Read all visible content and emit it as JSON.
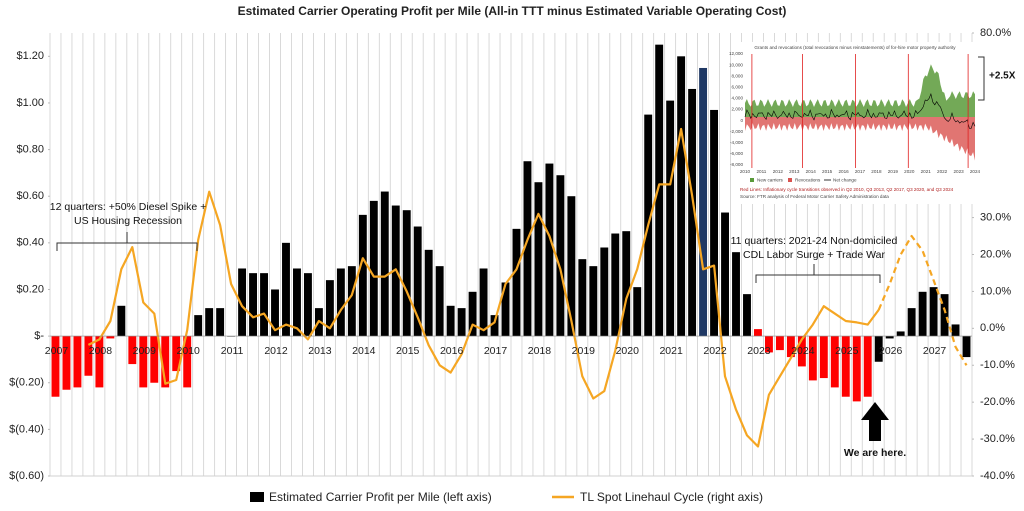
{
  "chart_data": {
    "type": "bar_line",
    "title": "Estimated Carrier Operating Profit per Mile (All-in TTT minus Estimated Variable Operating Cost)",
    "categories": [
      "2007",
      null,
      null,
      null,
      "2008",
      null,
      null,
      null,
      "2009",
      null,
      null,
      null,
      "2010",
      null,
      null,
      null,
      "2011",
      null,
      null,
      null,
      "2012",
      null,
      null,
      null,
      "2013",
      null,
      null,
      null,
      "2014",
      null,
      null,
      null,
      "2015",
      null,
      null,
      null,
      "2016",
      null,
      null,
      null,
      "2017",
      null,
      null,
      null,
      "2018",
      null,
      null,
      null,
      "2019",
      null,
      null,
      null,
      "2020",
      null,
      null,
      null,
      "2021",
      null,
      null,
      null,
      "2022",
      null,
      null,
      null,
      "2023",
      null,
      null,
      null,
      "2024",
      null,
      null,
      null,
      "2025",
      null,
      null,
      null,
      "2026",
      null,
      null,
      null,
      "2027",
      null,
      null,
      null
    ],
    "series": [
      {
        "name": "Estimated Carrier Profit per Mile (left axis)",
        "type": "bar",
        "color": "#000000",
        "values": [
          -0.26,
          -0.23,
          -0.22,
          -0.17,
          -0.22,
          -0.01,
          0.13,
          -0.12,
          -0.22,
          -0.2,
          -0.22,
          -0.15,
          -0.22,
          0.09,
          0.12,
          0.12,
          0,
          0.29,
          0.27,
          0.27,
          0.2,
          0.4,
          0.29,
          0.27,
          0.12,
          0.24,
          0.29,
          0.3,
          0.52,
          0.58,
          0.62,
          0.56,
          0.54,
          0.47,
          0.37,
          0.3,
          0.13,
          0.12,
          0.19,
          0.29,
          0.09,
          0.23,
          0.46,
          0.75,
          0.66,
          0.74,
          0.69,
          0.6,
          0.33,
          0.3,
          0.38,
          0.44,
          0.45,
          0.21,
          0.95,
          1.25,
          1.01,
          1.2,
          1.06,
          1.15,
          0.97,
          0.53,
          0.36,
          0.18,
          0.03,
          -0.07,
          -0.06,
          -0.09,
          -0.13,
          -0.19,
          -0.18,
          -0.22,
          -0.26,
          -0.28,
          -0.26,
          -0.11,
          -0.01,
          0.02,
          0.12,
          0.19,
          0.21,
          0.18,
          0.05,
          -0.09
        ],
        "colors": [
          "#ff0000",
          "#ff0000",
          "#ff0000",
          "#ff0000",
          "#ff0000",
          "#ff0000",
          "#000000",
          "#ff0000",
          "#ff0000",
          "#ff0000",
          "#ff0000",
          "#ff0000",
          "#ff0000",
          "#000000",
          "#000000",
          "#000000",
          "#000000",
          "#000000",
          "#000000",
          "#000000",
          "#000000",
          "#000000",
          "#000000",
          "#000000",
          "#000000",
          "#000000",
          "#000000",
          "#000000",
          "#000000",
          "#000000",
          "#000000",
          "#000000",
          "#000000",
          "#000000",
          "#000000",
          "#000000",
          "#000000",
          "#000000",
          "#000000",
          "#000000",
          "#000000",
          "#000000",
          "#000000",
          "#000000",
          "#000000",
          "#000000",
          "#000000",
          "#000000",
          "#000000",
          "#000000",
          "#000000",
          "#000000",
          "#000000",
          "#000000",
          "#000000",
          "#000000",
          "#000000",
          "#000000",
          "#000000",
          "#1f3864",
          "#000000",
          "#000000",
          "#000000",
          "#000000",
          "#ff0000",
          "#ff0000",
          "#ff0000",
          "#ff0000",
          "#ff0000",
          "#ff0000",
          "#ff0000",
          "#ff0000",
          "#ff0000",
          "#ff0000",
          "#ff0000",
          "#000000",
          "#000000",
          "#000000",
          "#000000",
          "#000000",
          "#000000",
          "#000000",
          "#000000",
          "#000000"
        ]
      },
      {
        "name": "TL Spot Linehaul Cycle (right axis)",
        "type": "line",
        "axis": "y2",
        "color": "#f5a623",
        "dashed_from": 75,
        "values": [
          null,
          null,
          null,
          -4.5,
          -3,
          2,
          16,
          22,
          7,
          4,
          -15,
          -14,
          -0.5,
          24,
          37,
          28,
          12,
          6,
          3,
          4,
          -0.5,
          1,
          0,
          -3,
          2,
          0,
          5,
          9,
          19,
          14,
          14,
          16,
          10,
          3,
          -4.6,
          -10,
          -12,
          -7,
          1,
          -0.5,
          1.6,
          12,
          16,
          24,
          31,
          25,
          16,
          2,
          -13,
          -19,
          -17,
          -6,
          8,
          16,
          28,
          39,
          39,
          54,
          36,
          16,
          17,
          -13,
          -22,
          -29,
          -32,
          -18,
          -13,
          -8,
          -3,
          1,
          6,
          4,
          2,
          1.6,
          1,
          5,
          12,
          20,
          25,
          21,
          13,
          5,
          -5,
          -10
        ]
      }
    ],
    "ylim": [
      -0.6,
      1.3
    ],
    "yticks": [
      {
        "value": -0.6,
        "label": "$(0.60)"
      },
      {
        "value": -0.4,
        "label": "$(0.40)"
      },
      {
        "value": -0.2,
        "label": "$(0.20)"
      },
      {
        "value": 0,
        "label": "$-"
      },
      {
        "value": 0.2,
        "label": "$0.20"
      },
      {
        "value": 0.4,
        "label": "$0.40"
      },
      {
        "value": 0.6,
        "label": "$0.60"
      },
      {
        "value": 0.8,
        "label": "$0.80"
      },
      {
        "value": 1.0,
        "label": "$1.00"
      },
      {
        "value": 1.2,
        "label": "$1.20"
      }
    ],
    "y2lim": [
      -40,
      80
    ],
    "y2ticks": [
      {
        "value": 80,
        "label": "80.0%"
      },
      {
        "value": 30,
        "label": "30.0%"
      },
      {
        "value": 20,
        "label": "20.0%"
      },
      {
        "value": 10,
        "label": "10.0%"
      },
      {
        "value": 0,
        "label": "0.0%"
      },
      {
        "value": -10,
        "label": "-10.0%"
      },
      {
        "value": -20,
        "label": "-20.0%"
      },
      {
        "value": -30,
        "label": "-30.0%"
      },
      {
        "value": -40,
        "label": "-40.0%"
      }
    ],
    "grid": "vertical",
    "annotations": [
      "12 quarters: +50% Diesel Spike +",
      "US Housing Recession",
      "11 quarters: 2021-24 Non-domiciled",
      "CDL Labor Surge + Trade War",
      "We are here.",
      "+2.5X"
    ],
    "inset": {
      "title": "Grants and revocations (total revocations minus reinstatements) of for-hire motor property authority",
      "yticks": [
        "12,000",
        "10,000",
        "8,000",
        "6,000",
        "4,000",
        "2,000",
        "0",
        "-2,000",
        "-4,000",
        "-6,000",
        "-8,000"
      ],
      "xticks": [
        "2010",
        "2011",
        "2012",
        "2013",
        "2014",
        "2015",
        "2016",
        "2017",
        "2018",
        "2019",
        "2020",
        "2021",
        "2022",
        "2023",
        "2024"
      ],
      "legend": [
        "New carriers",
        "Revocations",
        "Net change"
      ],
      "note": "Red Lines: Inflationary cycle transitions observed in Q2 2010, Q3 2013, Q2 2017, Q3 2020, and Q3 2024",
      "source": "Source: FTR analysis of Federal Motor Carrier Safety Administration data"
    }
  }
}
